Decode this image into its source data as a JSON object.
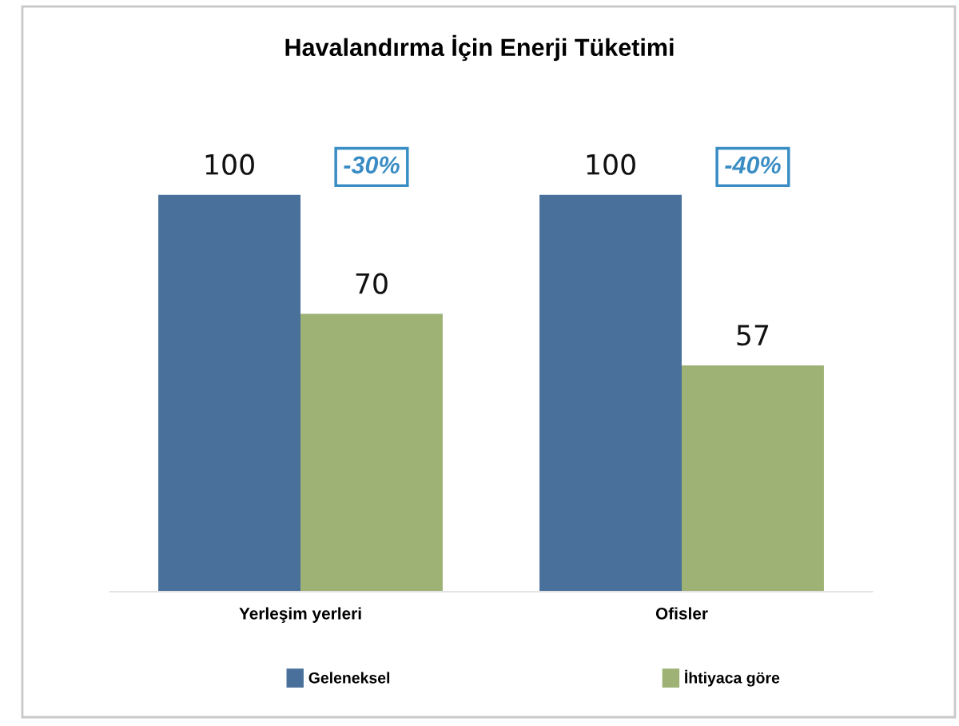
{
  "chart_data": {
    "type": "bar",
    "title": "Havalandırma İçin Enerji Tüketimi",
    "categories": [
      "Yerleşim yerleri",
      "Ofisler"
    ],
    "series": [
      {
        "name": "Geleneksel",
        "color": "#48709a",
        "values": [
          100,
          100
        ]
      },
      {
        "name": "İhtiyaca göre",
        "color": "#9db274",
        "values": [
          70,
          57
        ]
      }
    ],
    "data_labels": true,
    "annotations": [
      "-30%",
      "-40%"
    ],
    "legend": "bottom"
  }
}
